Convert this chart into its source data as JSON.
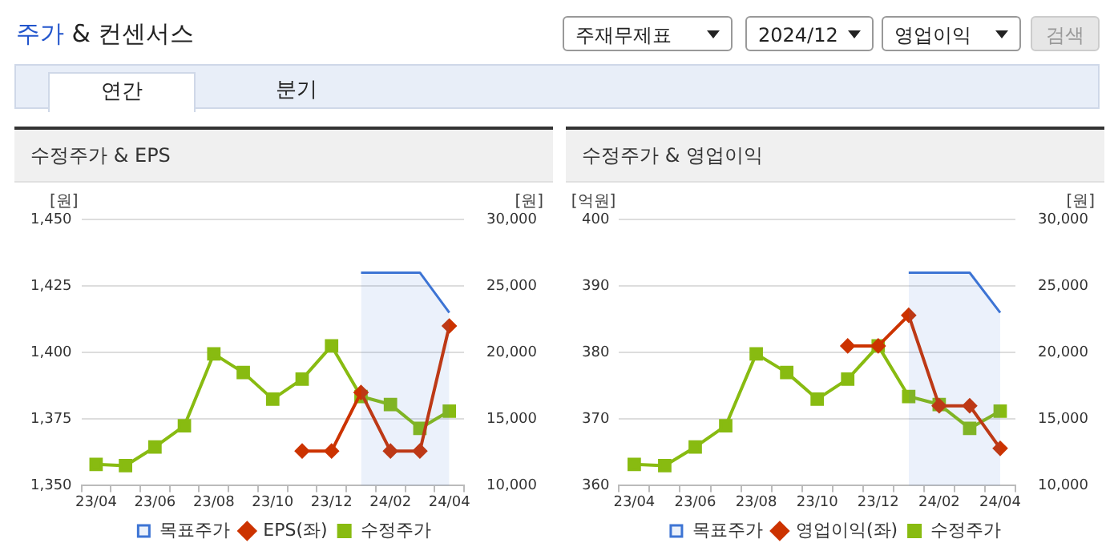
{
  "chart_data": [
    {
      "type": "line",
      "title": "수정주가 & EPS",
      "ylabel": "[원]",
      "y2label": "[원]",
      "annotations": [
        "주가 & 컨센서스",
        "주재무제표",
        "2024/12",
        "영업이익",
        "검색",
        "연간",
        "분기"
      ],
      "categories": [
        "23/04",
        null,
        "23/06",
        null,
        "23/08",
        null,
        "23/10",
        null,
        "23/12",
        null,
        "24/02",
        null,
        "24/04"
      ],
      "series": [
        {
          "name": "목표주가",
          "type": "area",
          "axis": "y2",
          "color": "#3d74d4",
          "marker": "none",
          "values": [
            null,
            null,
            null,
            null,
            null,
            null,
            null,
            null,
            null,
            26000,
            26000,
            26000,
            23000
          ]
        },
        {
          "name": "EPS(좌)",
          "type": "line",
          "color": "#cc3300",
          "marker": "diamond",
          "values": [
            null,
            null,
            null,
            null,
            null,
            null,
            null,
            1363,
            1363,
            1385,
            1363,
            1363,
            1410
          ]
        },
        {
          "name": "수정주가",
          "type": "line",
          "axis": "y2",
          "color": "#88bb11",
          "marker": "square",
          "values": [
            11600,
            11500,
            12900,
            14500,
            19900,
            18500,
            16500,
            18000,
            20500,
            16700,
            16100,
            14300,
            15600
          ]
        }
      ],
      "ylim": [
        1350,
        1450
      ],
      "yticks": [
        {
          "value": 1350,
          "label": "1,350"
        },
        {
          "value": 1375,
          "label": "1,375"
        },
        {
          "value": 1400,
          "label": "1,400"
        },
        {
          "value": 1425,
          "label": "1,425"
        },
        {
          "value": 1450,
          "label": "1,450"
        }
      ],
      "y2lim": [
        10000,
        30000
      ],
      "y2ticks": [
        {
          "value": 10000,
          "label": "10,000"
        },
        {
          "value": 15000,
          "label": "15,000"
        },
        {
          "value": 20000,
          "label": "20,000"
        },
        {
          "value": 25000,
          "label": "25,000"
        },
        {
          "value": 30000,
          "label": "30,000"
        }
      ],
      "grid": "y",
      "legend": "bottom"
    },
    {
      "type": "line",
      "title": "수정주가 & 영업이익",
      "ylabel": "[억원]",
      "y2label": "[원]",
      "categories": [
        "23/04",
        null,
        "23/06",
        null,
        "23/08",
        null,
        "23/10",
        null,
        "23/12",
        null,
        "24/02",
        null,
        "24/04"
      ],
      "series": [
        {
          "name": "목표주가",
          "type": "area",
          "axis": "y2",
          "color": "#3d74d4",
          "marker": "none",
          "values": [
            null,
            null,
            null,
            null,
            null,
            null,
            null,
            null,
            null,
            26000,
            26000,
            26000,
            23000
          ]
        },
        {
          "name": "영업이익(좌)",
          "type": "line",
          "color": "#cc3300",
          "marker": "diamond",
          "values": [
            null,
            null,
            null,
            null,
            null,
            null,
            null,
            381,
            381,
            385.6,
            372,
            372,
            365.6
          ]
        },
        {
          "name": "수정주가",
          "type": "line",
          "axis": "y2",
          "color": "#88bb11",
          "marker": "square",
          "values": [
            11600,
            11500,
            12900,
            14500,
            19900,
            18500,
            16500,
            18000,
            20500,
            16700,
            16100,
            14300,
            15600
          ]
        }
      ],
      "ylim": [
        360,
        400
      ],
      "yticks": [
        360,
        370,
        380,
        390,
        400
      ],
      "y2lim": [
        10000,
        30000
      ],
      "y2ticks": [
        {
          "value": 10000,
          "label": "10,000"
        },
        {
          "value": 15000,
          "label": "15,000"
        },
        {
          "value": 20000,
          "label": "20,000"
        },
        {
          "value": 25000,
          "label": "25,000"
        },
        {
          "value": 30000,
          "label": "30,000"
        }
      ],
      "grid": "y",
      "legend": "bottom"
    }
  ]
}
